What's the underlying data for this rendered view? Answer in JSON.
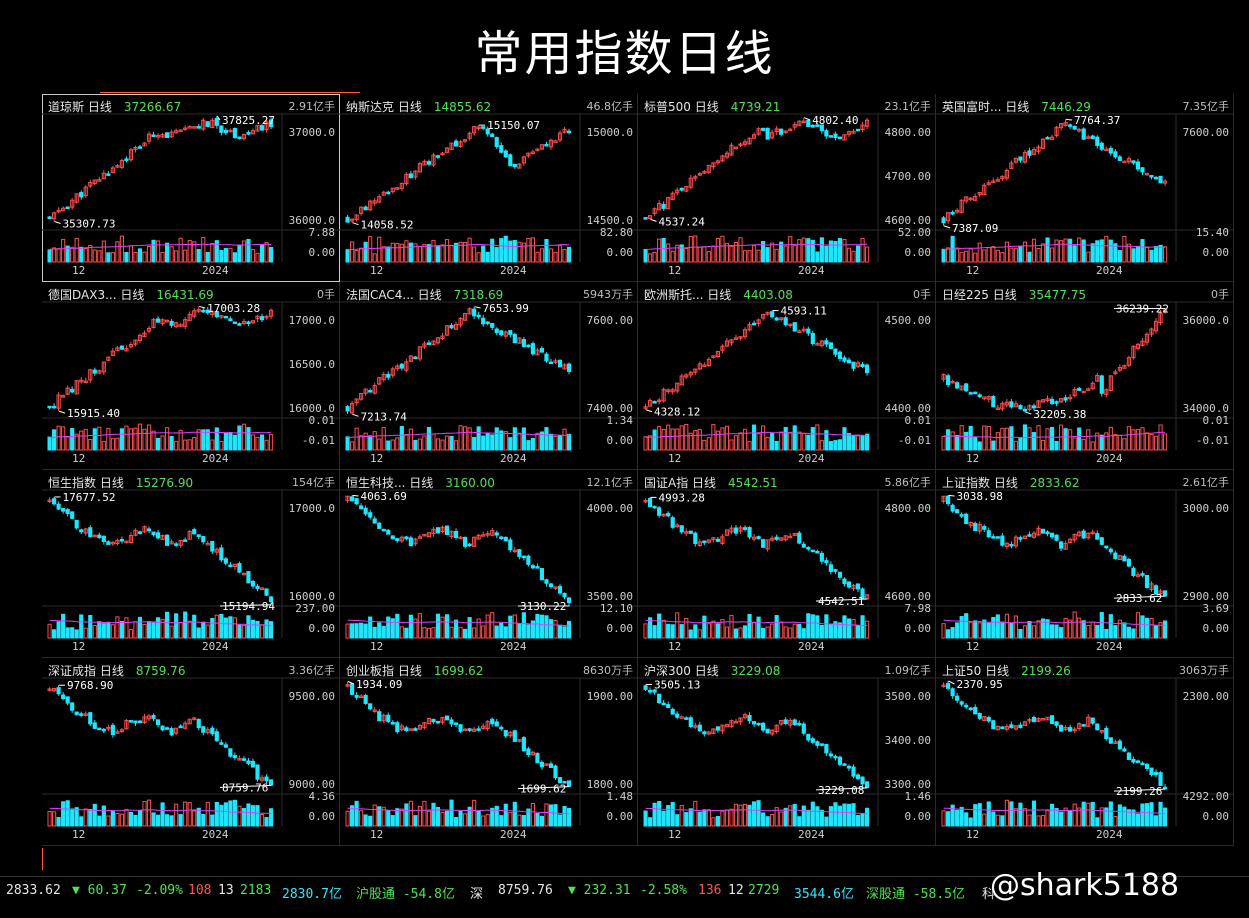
{
  "title": "常用指数日线",
  "colors": {
    "up": "#ff4d4d",
    "down": "#1fe6ff",
    "price_up": "#4ee44e",
    "ma": "#e040fb"
  },
  "panels": [
    {
      "name": "道琼斯",
      "period": "日线",
      "price": "37266.67",
      "volume": "2.91亿手",
      "y_ticks": [
        "37000.0",
        "36000.0"
      ],
      "vol_ticks": [
        "7.88",
        "0.00"
      ],
      "x_ticks": [
        "12",
        "2024"
      ],
      "high_label": "37825.27",
      "low_label": "35307.73",
      "trend": "up_flat"
    },
    {
      "name": "纳斯达克",
      "period": "日线",
      "price": "14855.62",
      "volume": "46.8亿手",
      "y_ticks": [
        "15000.0",
        "14500.0"
      ],
      "vol_ticks": [
        "82.80",
        "0.00"
      ],
      "x_ticks": [
        "12",
        "2024"
      ],
      "high_label": "15150.07",
      "low_label": "14058.52",
      "trend": "up_dip"
    },
    {
      "name": "标普500",
      "period": "日线",
      "price": "4739.21",
      "volume": "23.1亿手",
      "y_ticks": [
        "4800.00",
        "4700.00",
        "4600.00"
      ],
      "vol_ticks": [
        "52.00",
        "0.00"
      ],
      "x_ticks": [
        "12",
        "2024"
      ],
      "high_label": "4802.40",
      "low_label": "4537.24",
      "trend": "up_flat"
    },
    {
      "name": "英国富时...",
      "period": "日线",
      "price": "7446.29",
      "volume": "7.35亿手",
      "y_ticks": [
        "7600.00"
      ],
      "vol_ticks": [
        "15.40",
        "0.00"
      ],
      "x_ticks": [
        "12",
        "2024"
      ],
      "high_label": "7764.37",
      "low_label": "7387.09",
      "trend": "up_down"
    },
    {
      "name": "德国DAX3...",
      "period": "日线",
      "price": "16431.69",
      "volume": "0手",
      "y_ticks": [
        "17000.0",
        "16500.0",
        "16000.0"
      ],
      "vol_ticks": [
        "0.01",
        "-0.01"
      ],
      "x_ticks": [
        "12",
        "2024"
      ],
      "high_label": "17003.28",
      "low_label": "15915.40",
      "trend": "up_flat"
    },
    {
      "name": "法国CAC4...",
      "period": "日线",
      "price": "7318.69",
      "volume": "5943万手",
      "y_ticks": [
        "7600.00",
        "7400.00"
      ],
      "vol_ticks": [
        "1.34",
        "0.00"
      ],
      "x_ticks": [
        "12",
        "2024"
      ],
      "high_label": "7653.99",
      "low_label": "7213.74",
      "trend": "up_down"
    },
    {
      "name": "欧洲斯托...",
      "period": "日线",
      "price": "4403.08",
      "volume": "0手",
      "y_ticks": [
        "4500.00",
        "4400.00"
      ],
      "vol_ticks": [
        "0.01",
        "-0.01"
      ],
      "x_ticks": [
        "12",
        "2024"
      ],
      "high_label": "4593.11",
      "low_label": "4328.12",
      "trend": "up_down"
    },
    {
      "name": "日经225",
      "period": "日线",
      "price": "35477.75",
      "volume": "0手",
      "y_ticks": [
        "36000.0",
        "34000.0"
      ],
      "vol_ticks": [
        "0.01",
        "-0.01"
      ],
      "x_ticks": [
        "12",
        "2024"
      ],
      "high_label": "36239.22",
      "low_label": "32205.38",
      "trend": "flat_up"
    },
    {
      "name": "恒生指数",
      "period": "日线",
      "price": "15276.90",
      "volume": "154亿手",
      "y_ticks": [
        "17000.0",
        "16000.0"
      ],
      "vol_ticks": [
        "237.00",
        "0.00"
      ],
      "x_ticks": [
        "12",
        "2024"
      ],
      "high_label": "17677.52",
      "low_label": "15194.94",
      "trend": "down"
    },
    {
      "name": "恒生科技...",
      "period": "日线",
      "price": "3160.00",
      "volume": "12.1亿手",
      "y_ticks": [
        "4000.00",
        "3500.00"
      ],
      "vol_ticks": [
        "12.10",
        "0.00"
      ],
      "x_ticks": [
        "12",
        "2024"
      ],
      "high_label": "4063.69",
      "low_label": "3130.22",
      "trend": "down"
    },
    {
      "name": "国证A指",
      "period": "日线",
      "price": "4542.51",
      "volume": "5.86亿手",
      "y_ticks": [
        "4800.00",
        "4600.00"
      ],
      "vol_ticks": [
        "7.98",
        "0.00"
      ],
      "x_ticks": [
        "12",
        "2024"
      ],
      "high_label": "4993.28",
      "low_label": "4542.51",
      "trend": "down"
    },
    {
      "name": "上证指数",
      "period": "日线",
      "price": "2833.62",
      "volume": "2.61亿手",
      "y_ticks": [
        "3000.00",
        "2900.00"
      ],
      "vol_ticks": [
        "3.69",
        "0.00"
      ],
      "x_ticks": [
        "12",
        "2024"
      ],
      "high_label": "3038.98",
      "low_label": "2833.62",
      "trend": "down"
    },
    {
      "name": "深证成指",
      "period": "日线",
      "price": "8759.76",
      "volume": "3.36亿手",
      "y_ticks": [
        "9500.00",
        "9000.00"
      ],
      "vol_ticks": [
        "4.36",
        "0.00"
      ],
      "x_ticks": [
        "12",
        "2024"
      ],
      "high_label": "9768.90",
      "low_label": "8759.76",
      "trend": "down"
    },
    {
      "name": "创业板指",
      "period": "日线",
      "price": "1699.62",
      "volume": "8630万手",
      "y_ticks": [
        "1900.00",
        "1800.00"
      ],
      "vol_ticks": [
        "1.48",
        "0.00"
      ],
      "x_ticks": [
        "12",
        "2024"
      ],
      "high_label": "1934.09",
      "low_label": "1699.62",
      "trend": "down"
    },
    {
      "name": "沪深300",
      "period": "日线",
      "price": "3229.08",
      "volume": "1.09亿手",
      "y_ticks": [
        "3500.00",
        "3400.00",
        "3300.00"
      ],
      "vol_ticks": [
        "1.46",
        "0.00"
      ],
      "x_ticks": [
        "12",
        "2024"
      ],
      "high_label": "3505.13",
      "low_label": "3229.08",
      "trend": "down"
    },
    {
      "name": "上证50",
      "period": "日线",
      "price": "2199.26",
      "volume": "3063万手",
      "y_ticks": [
        "2300.00"
      ],
      "vol_ticks": [
        "4292.00",
        "0.00"
      ],
      "x_ticks": [
        "12",
        "2024"
      ],
      "high_label": "2370.95",
      "low_label": "2199.26",
      "trend": "down"
    }
  ],
  "statusbar": {
    "sh_price": "2833.62",
    "sh_change": "▼ 60.37",
    "sh_pct": "-2.09%",
    "sh_up": "108",
    "sh_flat": "13",
    "sh_down": "2183",
    "sh_amount": "2830.7亿",
    "sh_connect": "沪股通 -54.8亿",
    "sz_label": "深",
    "sz_price": "8759.76",
    "sz_change": "▼ 232.31",
    "sz_pct": "-2.58%",
    "sz_up": "136",
    "sz_flat": "12",
    "sz_down": "2729",
    "sz_amount": "3544.6亿",
    "sz_connect": "深股通 -58.5亿",
    "kc_label": "科"
  },
  "watermark": "@shark5188"
}
